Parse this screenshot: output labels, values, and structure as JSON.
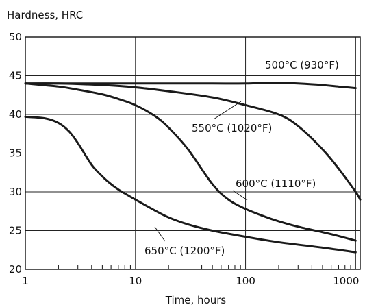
{
  "chart_data": {
    "type": "line",
    "title": "",
    "ylabel": "Hardness, HRC",
    "xlabel": "Time, hours",
    "x_scale": "log",
    "xlim": [
      1,
      1100
    ],
    "ylim": [
      20,
      50
    ],
    "x_ticks": [
      {
        "value": 1,
        "label": "1"
      },
      {
        "value": 10,
        "label": "10"
      },
      {
        "value": 100,
        "label": "100"
      },
      {
        "value": 1000,
        "label": "1000"
      }
    ],
    "y_ticks": [
      {
        "value": 20,
        "label": "20"
      },
      {
        "value": 25,
        "label": "25"
      },
      {
        "value": 30,
        "label": "30"
      },
      {
        "value": 35,
        "label": "35"
      },
      {
        "value": 40,
        "label": "40"
      },
      {
        "value": 45,
        "label": "45"
      },
      {
        "value": 50,
        "label": "50"
      }
    ],
    "grid": true,
    "series": [
      {
        "name": "500°C (930°F)",
        "x": [
          1,
          2,
          5,
          10,
          20,
          50,
          100,
          150,
          200,
          300,
          500,
          700,
          1000
        ],
        "y": [
          44.0,
          44.0,
          44.0,
          44.0,
          44.0,
          44.0,
          44.0,
          44.1,
          44.1,
          44.0,
          43.8,
          43.6,
          43.4
        ]
      },
      {
        "name": "550°C (1020°F)",
        "x": [
          1,
          2,
          5,
          10,
          20,
          50,
          100,
          200,
          300,
          500,
          700,
          1000,
          1100
        ],
        "y": [
          44.0,
          44.0,
          43.8,
          43.5,
          43.0,
          42.2,
          41.2,
          40.0,
          38.5,
          35.5,
          33.0,
          30.0,
          29.0
        ]
      },
      {
        "name": "600°C (1110°F)",
        "x": [
          1,
          2,
          3,
          5,
          7,
          10,
          15,
          20,
          30,
          50,
          70,
          100,
          150,
          200,
          300,
          500,
          700,
          1000
        ],
        "y": [
          44.0,
          43.6,
          43.2,
          42.6,
          42.0,
          41.2,
          39.8,
          38.3,
          35.5,
          31.0,
          29.0,
          27.8,
          26.8,
          26.2,
          25.5,
          24.8,
          24.3,
          23.7
        ]
      },
      {
        "name": "650°C (1200°F)",
        "x": [
          1,
          1.5,
          2,
          2.5,
          3,
          4,
          5,
          6,
          7,
          8,
          10,
          15,
          20,
          30,
          50,
          100,
          200,
          500,
          1000
        ],
        "y": [
          39.7,
          39.5,
          38.9,
          37.8,
          36.3,
          33.5,
          32.0,
          31.0,
          30.3,
          29.8,
          29.0,
          27.6,
          26.7,
          25.8,
          25.0,
          24.2,
          23.5,
          22.8,
          22.2
        ]
      }
    ],
    "annotations": [
      {
        "text": "500°C (930°F)",
        "series": 0
      },
      {
        "text": "550°C (1020°F)",
        "series": 1
      },
      {
        "text": "600°C (1110°F)",
        "series": 2
      },
      {
        "text": "650°C (1200°F)",
        "series": 3
      }
    ]
  }
}
